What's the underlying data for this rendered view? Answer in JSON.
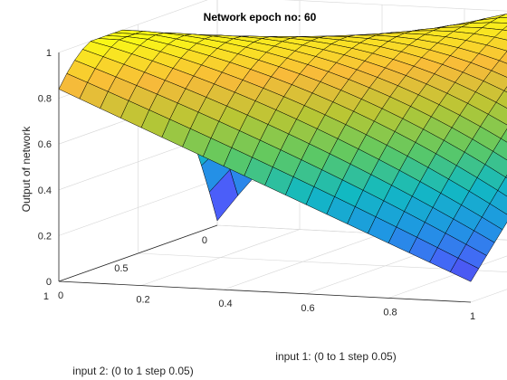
{
  "chart_data": {
    "type": "surface",
    "title": "Network epoch no: 60",
    "xlabel": "input 1: (0 to 1 step 0.05)",
    "ylabel": "input 2: (0 to 1 step 0.05)",
    "zlabel": "Output of network",
    "x": {
      "start": 0,
      "end": 1,
      "step": 0.05
    },
    "y": {
      "start": 0,
      "end": 1,
      "step": 0.05
    },
    "xlim": [
      0,
      1
    ],
    "ylim": [
      0,
      1
    ],
    "zlim": [
      0,
      1
    ],
    "xticks": [
      "0",
      "0.2",
      "0.4",
      "0.6",
      "0.8",
      "1"
    ],
    "yticks": [
      "0",
      "0.5",
      "1"
    ],
    "zticks": [
      "0",
      "0.2",
      "0.4",
      "0.6",
      "0.8",
      "1"
    ],
    "corner_values": {
      "x0_y0": 0.02,
      "x1_y0": 0.98,
      "x0_y1": 0.84,
      "x1_y1": 0.09,
      "x0_5_y0": 0.85,
      "x0_y0_5": 0.94
    },
    "colormap": [
      "#3e26a8",
      "#4b5ef9",
      "#1f96e4",
      "#12b9c2",
      "#5ec962",
      "#b8c634",
      "#f8ba3a",
      "#f9fb15"
    ],
    "grid": true,
    "edge_color": "#000000"
  }
}
